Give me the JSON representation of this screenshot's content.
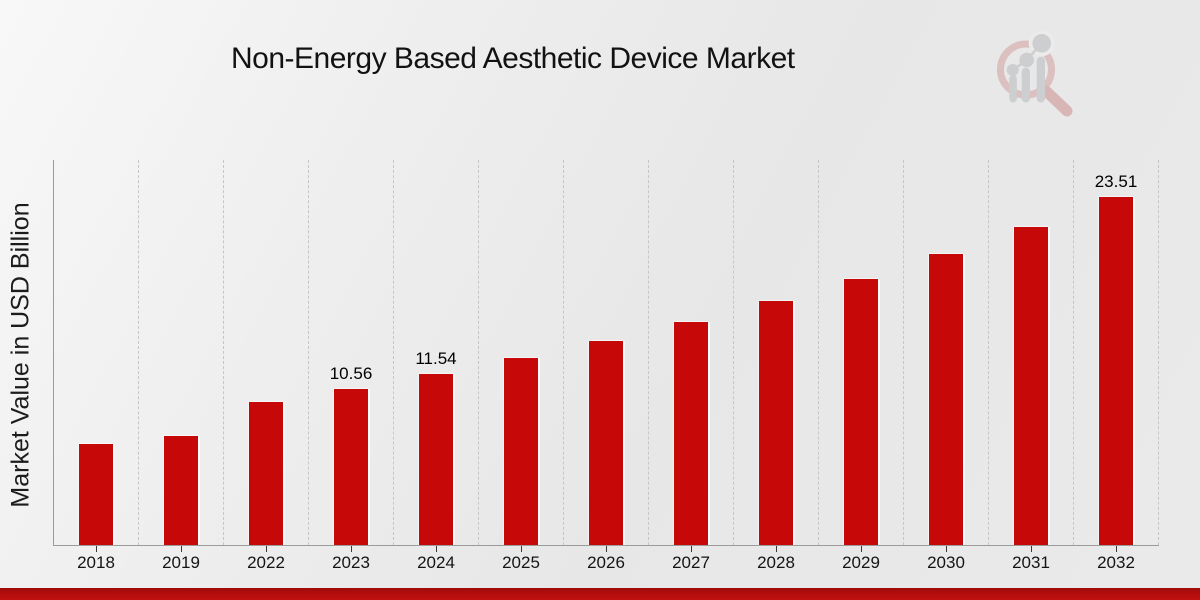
{
  "page": {
    "title": "Non-Energy Based Aesthetic Device Market"
  },
  "chart_data": {
    "type": "bar",
    "title": "Non-Energy Based Aesthetic Device Market",
    "xlabel": "",
    "ylabel": "Market Value in USD Billion",
    "categories": [
      "2018",
      "2019",
      "2022",
      "2023",
      "2024",
      "2025",
      "2026",
      "2027",
      "2028",
      "2029",
      "2030",
      "2031",
      "2032"
    ],
    "values": [
      6.8,
      7.35,
      9.66,
      10.56,
      11.54,
      12.61,
      13.78,
      15.06,
      16.46,
      17.99,
      19.66,
      21.49,
      23.51
    ],
    "data_labels": {
      "2023": "10.56",
      "2024": "11.54",
      "2032": "23.51"
    },
    "ylim": [
      0,
      26
    ],
    "y_tick_labels_visible": false,
    "grid": "vertical-dashed",
    "legend": "none",
    "bar_color": "#c70808"
  },
  "colors": {
    "bar_red": "#c70808",
    "footer_band_red": "#b30d0d",
    "background_gray": "#ebebeb",
    "gridline_gray": "#c6c6c6",
    "axis_gray": "#9b9b9b"
  },
  "logo": {
    "name": "market-research-magnifier-logo",
    "ring_pink": "#dcbfbf",
    "element_gray": "#cdced0"
  }
}
